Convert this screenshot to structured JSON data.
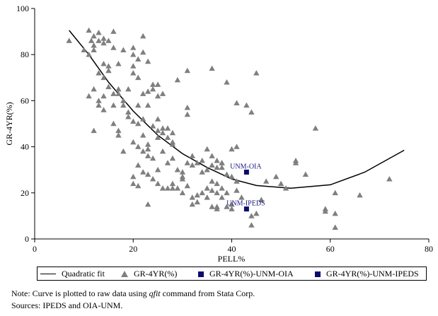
{
  "chart_data": {
    "type": "scatter",
    "title": "",
    "xlabel": "PELL%",
    "ylabel": "GR-4YR(%)",
    "xlim": [
      0,
      80
    ],
    "ylim": [
      0,
      100
    ],
    "xticks": [
      "0",
      "20",
      "40",
      "60",
      "80"
    ],
    "yticks": [
      "0",
      "20",
      "40",
      "60",
      "80",
      "100"
    ],
    "grid": false,
    "legend_position": "bottom",
    "series": [
      {
        "name": "Quadratic fit",
        "kind": "line",
        "color": "#000000",
        "points": [
          [
            7,
            90.5
          ],
          [
            11,
            80
          ],
          [
            15,
            68
          ],
          [
            20,
            55.5
          ],
          [
            25,
            45
          ],
          [
            30,
            37
          ],
          [
            35,
            31
          ],
          [
            40,
            26
          ],
          [
            45,
            23.2
          ],
          [
            52,
            22
          ],
          [
            60,
            23.5
          ],
          [
            67,
            29
          ],
          [
            75,
            38.5
          ]
        ]
      },
      {
        "name": "GR-4YR(%)",
        "kind": "scatter",
        "marker": "triangle",
        "color": "#7f7f7f",
        "points": [
          [
            7,
            86
          ],
          [
            10,
            82
          ],
          [
            11,
            90.5
          ],
          [
            11.5,
            86
          ],
          [
            12,
            88
          ],
          [
            12,
            84
          ],
          [
            13,
            89.5
          ],
          [
            13,
            86
          ],
          [
            14,
            87
          ],
          [
            14,
            85
          ],
          [
            15,
            86
          ],
          [
            16,
            90
          ],
          [
            11,
            80
          ],
          [
            12,
            82
          ],
          [
            13,
            72
          ],
          [
            14,
            76
          ],
          [
            15,
            75
          ],
          [
            16,
            83
          ],
          [
            17,
            76
          ],
          [
            18,
            82
          ],
          [
            20,
            83
          ],
          [
            20,
            80
          ],
          [
            21,
            78
          ],
          [
            22,
            88
          ],
          [
            22,
            81
          ],
          [
            11,
            62
          ],
          [
            12,
            65
          ],
          [
            13,
            60
          ],
          [
            13,
            58
          ],
          [
            14,
            62
          ],
          [
            14,
            70
          ],
          [
            15,
            66
          ],
          [
            15,
            73
          ],
          [
            16,
            63
          ],
          [
            16,
            58
          ],
          [
            17,
            65
          ],
          [
            17,
            63
          ],
          [
            18,
            60
          ],
          [
            18,
            58
          ],
          [
            19,
            55
          ],
          [
            19,
            65
          ],
          [
            20,
            72
          ],
          [
            20,
            75
          ],
          [
            21,
            70
          ],
          [
            21,
            58
          ],
          [
            22,
            63
          ],
          [
            23,
            77
          ],
          [
            23,
            64
          ],
          [
            24,
            65
          ],
          [
            24,
            67
          ],
          [
            25,
            62
          ],
          [
            25,
            67
          ],
          [
            26,
            63
          ],
          [
            29,
            69
          ],
          [
            31,
            73
          ],
          [
            31,
            57
          ],
          [
            31,
            54
          ],
          [
            36,
            74
          ],
          [
            12,
            47
          ],
          [
            14,
            56
          ],
          [
            16,
            50
          ],
          [
            17,
            47
          ],
          [
            17,
            45
          ],
          [
            18,
            38
          ],
          [
            19,
            53
          ],
          [
            20,
            42
          ],
          [
            20,
            51
          ],
          [
            21,
            50
          ],
          [
            21,
            40
          ],
          [
            22,
            45
          ],
          [
            22,
            52
          ],
          [
            23,
            58
          ],
          [
            23,
            41
          ],
          [
            24,
            49
          ],
          [
            25,
            47
          ],
          [
            25,
            52
          ],
          [
            25,
            44
          ],
          [
            26,
            46
          ],
          [
            26,
            48
          ],
          [
            27,
            44
          ],
          [
            27,
            48
          ],
          [
            28,
            42
          ],
          [
            28,
            46
          ],
          [
            21,
            32
          ],
          [
            22,
            38
          ],
          [
            23,
            39
          ],
          [
            23,
            36
          ],
          [
            24,
            35
          ],
          [
            25,
            30
          ],
          [
            26,
            38
          ],
          [
            27,
            33
          ],
          [
            28,
            35
          ],
          [
            28,
            41
          ],
          [
            29,
            30
          ],
          [
            30,
            27
          ],
          [
            30,
            29
          ],
          [
            31,
            33
          ],
          [
            32,
            36
          ],
          [
            32,
            32
          ],
          [
            33,
            33
          ],
          [
            34,
            34
          ],
          [
            34,
            29
          ],
          [
            35,
            39
          ],
          [
            35,
            30
          ],
          [
            36,
            36
          ],
          [
            36,
            32
          ],
          [
            37,
            34
          ],
          [
            37,
            31
          ],
          [
            38,
            33
          ],
          [
            38,
            31
          ],
          [
            39,
            28
          ],
          [
            40,
            27
          ],
          [
            41,
            25
          ],
          [
            20,
            27
          ],
          [
            20,
            24
          ],
          [
            21,
            23
          ],
          [
            22,
            29
          ],
          [
            23,
            28
          ],
          [
            24,
            26
          ],
          [
            25,
            24
          ],
          [
            26,
            22
          ],
          [
            27,
            22
          ],
          [
            28,
            24
          ],
          [
            28,
            22
          ],
          [
            29,
            22
          ],
          [
            30,
            20
          ],
          [
            30,
            26
          ],
          [
            31,
            23
          ],
          [
            32,
            18
          ],
          [
            33,
            16
          ],
          [
            33,
            19
          ],
          [
            34,
            20
          ],
          [
            35,
            22
          ],
          [
            35,
            18
          ],
          [
            36,
            25
          ],
          [
            36,
            21
          ],
          [
            37,
            24
          ],
          [
            37,
            20
          ],
          [
            37,
            13
          ],
          [
            38,
            22
          ],
          [
            38,
            18
          ],
          [
            39,
            14
          ],
          [
            39,
            20
          ],
          [
            40,
            15
          ],
          [
            40,
            13
          ],
          [
            41,
            21
          ],
          [
            42,
            18
          ],
          [
            44,
            10
          ],
          [
            23,
            15
          ],
          [
            32,
            15
          ],
          [
            36,
            14
          ],
          [
            37,
            14
          ],
          [
            38,
            33
          ],
          [
            39,
            68
          ],
          [
            40,
            39
          ],
          [
            41,
            40
          ],
          [
            41,
            59
          ],
          [
            43,
            58
          ],
          [
            44,
            55
          ],
          [
            45,
            72
          ],
          [
            44,
            6
          ],
          [
            46,
            17
          ],
          [
            45,
            11
          ],
          [
            47,
            25
          ],
          [
            49,
            27
          ],
          [
            50,
            24
          ],
          [
            51,
            22
          ],
          [
            53,
            34
          ],
          [
            53,
            33
          ],
          [
            55,
            28
          ],
          [
            57,
            48
          ],
          [
            59,
            13
          ],
          [
            59,
            12
          ],
          [
            61,
            20
          ],
          [
            61,
            11
          ],
          [
            61,
            5
          ],
          [
            66,
            19
          ],
          [
            72,
            26
          ]
        ]
      },
      {
        "name": "GR-4YR(%)-UNM-OIA",
        "kind": "scatter",
        "marker": "square",
        "color": "#0b0b6e",
        "points": [
          [
            43,
            29
          ]
        ]
      },
      {
        "name": "GR-4YR(%)-UNM-IPEDS",
        "kind": "scatter",
        "marker": "square",
        "color": "#0b0b6e",
        "points": [
          [
            43,
            13
          ]
        ]
      }
    ],
    "annotations": [
      {
        "text": "UNM-OIA",
        "x": 43,
        "y": 29
      },
      {
        "text": "UNM-IPEDS",
        "x": 43,
        "y": 13
      }
    ]
  },
  "legend": {
    "items": [
      {
        "label": "Quadratic fit",
        "icon": "line"
      },
      {
        "label": "GR-4YR(%)",
        "icon": "triangle"
      },
      {
        "label": "GR-4YR(%)-UNM-OIA",
        "icon": "square"
      },
      {
        "label": "GR-4YR(%)-UNM-IPEDS",
        "icon": "square"
      }
    ]
  },
  "notes": {
    "line1_prefix": "Note: Curve is plotted to raw data using ",
    "line1_command": "qfit",
    "line1_suffix": " command from Stata Corp.",
    "line2": "Sources: IPEDS and OIA-UNM."
  }
}
